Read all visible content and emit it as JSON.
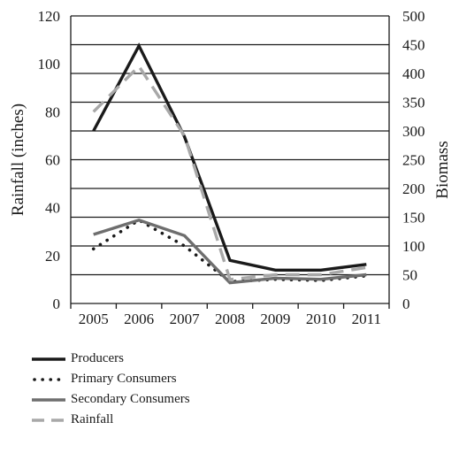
{
  "chart_data": {
    "type": "line",
    "x": [
      "2005",
      "2006",
      "2007",
      "2008",
      "2009",
      "2010",
      "2011"
    ],
    "ylabel": "Rainfall (inches)",
    "ylim": [
      0,
      120
    ],
    "yticks": [
      "0",
      "20",
      "40",
      "60",
      "80",
      "100",
      "120"
    ],
    "y2label": "Biomass",
    "y2lim": [
      0,
      500
    ],
    "y2ticks": [
      "0",
      "50",
      "100",
      "150",
      "200",
      "250",
      "300",
      "350",
      "400",
      "450",
      "500"
    ],
    "grid": "horizontal",
    "legend_position": "bottom-left",
    "series": [
      {
        "name": "Producers",
        "axis": "right",
        "values": [
          300,
          448,
          290,
          75,
          58,
          58,
          68
        ],
        "color": "#1a1a1a",
        "style": "solid"
      },
      {
        "name": "Primary Consumers",
        "axis": "right",
        "values": [
          95,
          145,
          100,
          38,
          42,
          40,
          48
        ],
        "color": "#1a1a1a",
        "style": "dotted"
      },
      {
        "name": "Secondary Consumers",
        "axis": "right",
        "values": [
          120,
          145,
          118,
          36,
          44,
          42,
          50
        ],
        "color": "#6e6e6e",
        "style": "solid"
      },
      {
        "name": "Rainfall",
        "axis": "left",
        "values": [
          80,
          99,
          70,
          10,
          12,
          12,
          15
        ],
        "color": "#a8a8a8",
        "style": "dashed"
      }
    ]
  }
}
